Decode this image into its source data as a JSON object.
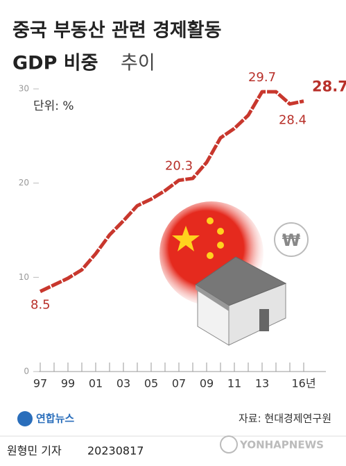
{
  "chart_data": {
    "type": "line",
    "title": [
      "중국 부동산 관련 경제활동",
      "GDP 비중",
      "추이"
    ],
    "unit_label": "단위: %",
    "categories": [
      "97",
      null,
      "99",
      null,
      "01",
      null,
      "03",
      null,
      "05",
      null,
      "07",
      null,
      "09",
      null,
      "11",
      null,
      "13",
      null,
      null,
      "16년"
    ],
    "values": [
      8.5,
      9.2,
      9.9,
      10.8,
      12.5,
      14.5,
      16.0,
      17.6,
      18.3,
      19.2,
      20.3,
      20.5,
      22.2,
      24.8,
      25.8,
      27.2,
      29.7,
      29.7,
      28.4,
      28.7
    ],
    "labeled_points": [
      0,
      10,
      16,
      18,
      19
    ],
    "color": "#c8372d",
    "ylim": [
      0,
      30
    ],
    "yticks": [
      0,
      10,
      20,
      30
    ],
    "source": "자료: 현대경제연구원",
    "logo": "연합뉴스",
    "reporter": "원형민 기자",
    "date": "20230817",
    "watermark": "YONHAPNEWS"
  }
}
